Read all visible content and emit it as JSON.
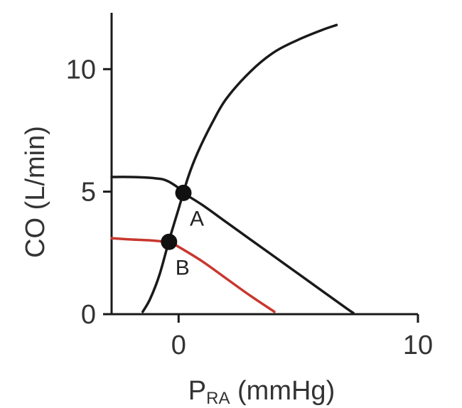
{
  "chart_data": {
    "type": "line",
    "xlabel_main": "P",
    "xlabel_sub": "RA",
    "xlabel_unit": " (mmHg)",
    "ylabel": "CO (L/min)",
    "xlim": [
      -2.8,
      10
    ],
    "ylim": [
      0,
      12.3
    ],
    "xticks": [
      0,
      10
    ],
    "yticks": [
      0,
      5,
      10
    ],
    "grid": false,
    "colors": {
      "axis": "#1a1a1a",
      "black_curve": "#1a1a1a",
      "red_curve": "#c8372d",
      "point": "#111111"
    },
    "series": [
      {
        "key": "return_normal",
        "color_key": "black_curve",
        "x": [
          -2.8,
          -2.0,
          -1.0,
          -0.5,
          0.0,
          0.2,
          1.0,
          2.0,
          3.0,
          4.0,
          5.0,
          6.0,
          7.0,
          7.3
        ],
        "y": [
          5.6,
          5.6,
          5.55,
          5.45,
          5.15,
          4.95,
          4.45,
          3.75,
          3.05,
          2.35,
          1.65,
          0.95,
          0.25,
          0.05
        ]
      },
      {
        "key": "return_reduced",
        "color_key": "red_curve",
        "x": [
          -2.8,
          -2.0,
          -1.0,
          -0.3,
          0.0,
          1.0,
          2.0,
          3.0,
          4.0
        ],
        "y": [
          3.1,
          3.05,
          3.0,
          2.9,
          2.75,
          2.15,
          1.45,
          0.75,
          0.1
        ]
      },
      {
        "key": "cardiac_function",
        "color_key": "black_curve",
        "x": [
          -1.5,
          -1.2,
          -0.8,
          -0.4,
          0.0,
          0.4,
          0.8,
          1.4,
          2.0,
          3.0,
          4.0,
          5.0,
          6.0,
          6.6
        ],
        "y": [
          0.1,
          0.6,
          1.6,
          3.0,
          4.3,
          5.6,
          6.6,
          7.8,
          8.8,
          9.9,
          10.7,
          11.2,
          11.6,
          11.8
        ]
      }
    ],
    "points": [
      {
        "label": "A",
        "x": 0.2,
        "y": 4.95
      },
      {
        "label": "B",
        "x": -0.4,
        "y": 2.95
      }
    ]
  }
}
